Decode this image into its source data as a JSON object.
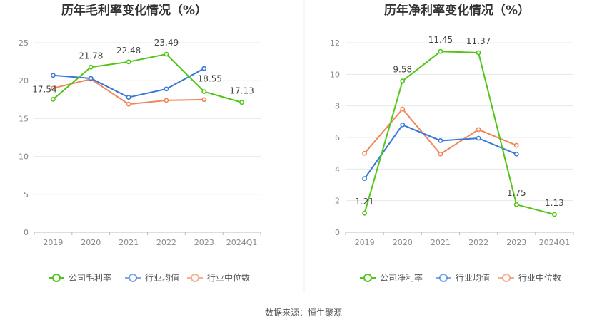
{
  "source": "数据来源：恒生聚源",
  "chart_data": [
    {
      "type": "line",
      "title": "历年毛利率变化情况（%）",
      "categories": [
        "2019",
        "2020",
        "2021",
        "2022",
        "2023",
        "2024Q1"
      ],
      "ylim": [
        0,
        25
      ],
      "yticks": [
        0,
        5,
        10,
        15,
        20,
        25
      ],
      "grid": true,
      "legend": "bottom",
      "series": [
        {
          "name": "公司毛利率",
          "color": "#52c41a",
          "values": [
            17.54,
            21.78,
            22.48,
            23.49,
            18.55,
            17.13
          ],
          "labels": [
            "17.54",
            "21.78",
            "22.48",
            "23.49",
            "18.55",
            "17.13"
          ]
        },
        {
          "name": "行业均值",
          "color": "#3a78d8",
          "values": [
            20.7,
            20.3,
            17.8,
            18.9,
            21.6,
            null
          ]
        },
        {
          "name": "行业中位数",
          "color": "#f0875a",
          "values": [
            19.0,
            20.2,
            16.9,
            17.4,
            17.5,
            null
          ]
        }
      ]
    },
    {
      "type": "line",
      "title": "历年净利率变化情况（%）",
      "categories": [
        "2019",
        "2020",
        "2021",
        "2022",
        "2023",
        "2024Q1"
      ],
      "ylim": [
        0,
        12
      ],
      "yticks": [
        0,
        2,
        4,
        6,
        8,
        10,
        12
      ],
      "grid": true,
      "legend": "bottom",
      "series": [
        {
          "name": "公司净利率",
          "color": "#52c41a",
          "values": [
            1.21,
            9.58,
            11.45,
            11.37,
            1.75,
            1.13
          ],
          "labels": [
            "1.21",
            "9.58",
            "11.45",
            "11.37",
            "1.75",
            "1.13"
          ]
        },
        {
          "name": "行业均值",
          "color": "#3a78d8",
          "values": [
            3.4,
            6.8,
            5.8,
            5.95,
            4.95,
            null
          ]
        },
        {
          "name": "行业中位数",
          "color": "#f0875a",
          "values": [
            5.0,
            7.8,
            4.95,
            6.5,
            5.5,
            null
          ]
        }
      ]
    }
  ]
}
